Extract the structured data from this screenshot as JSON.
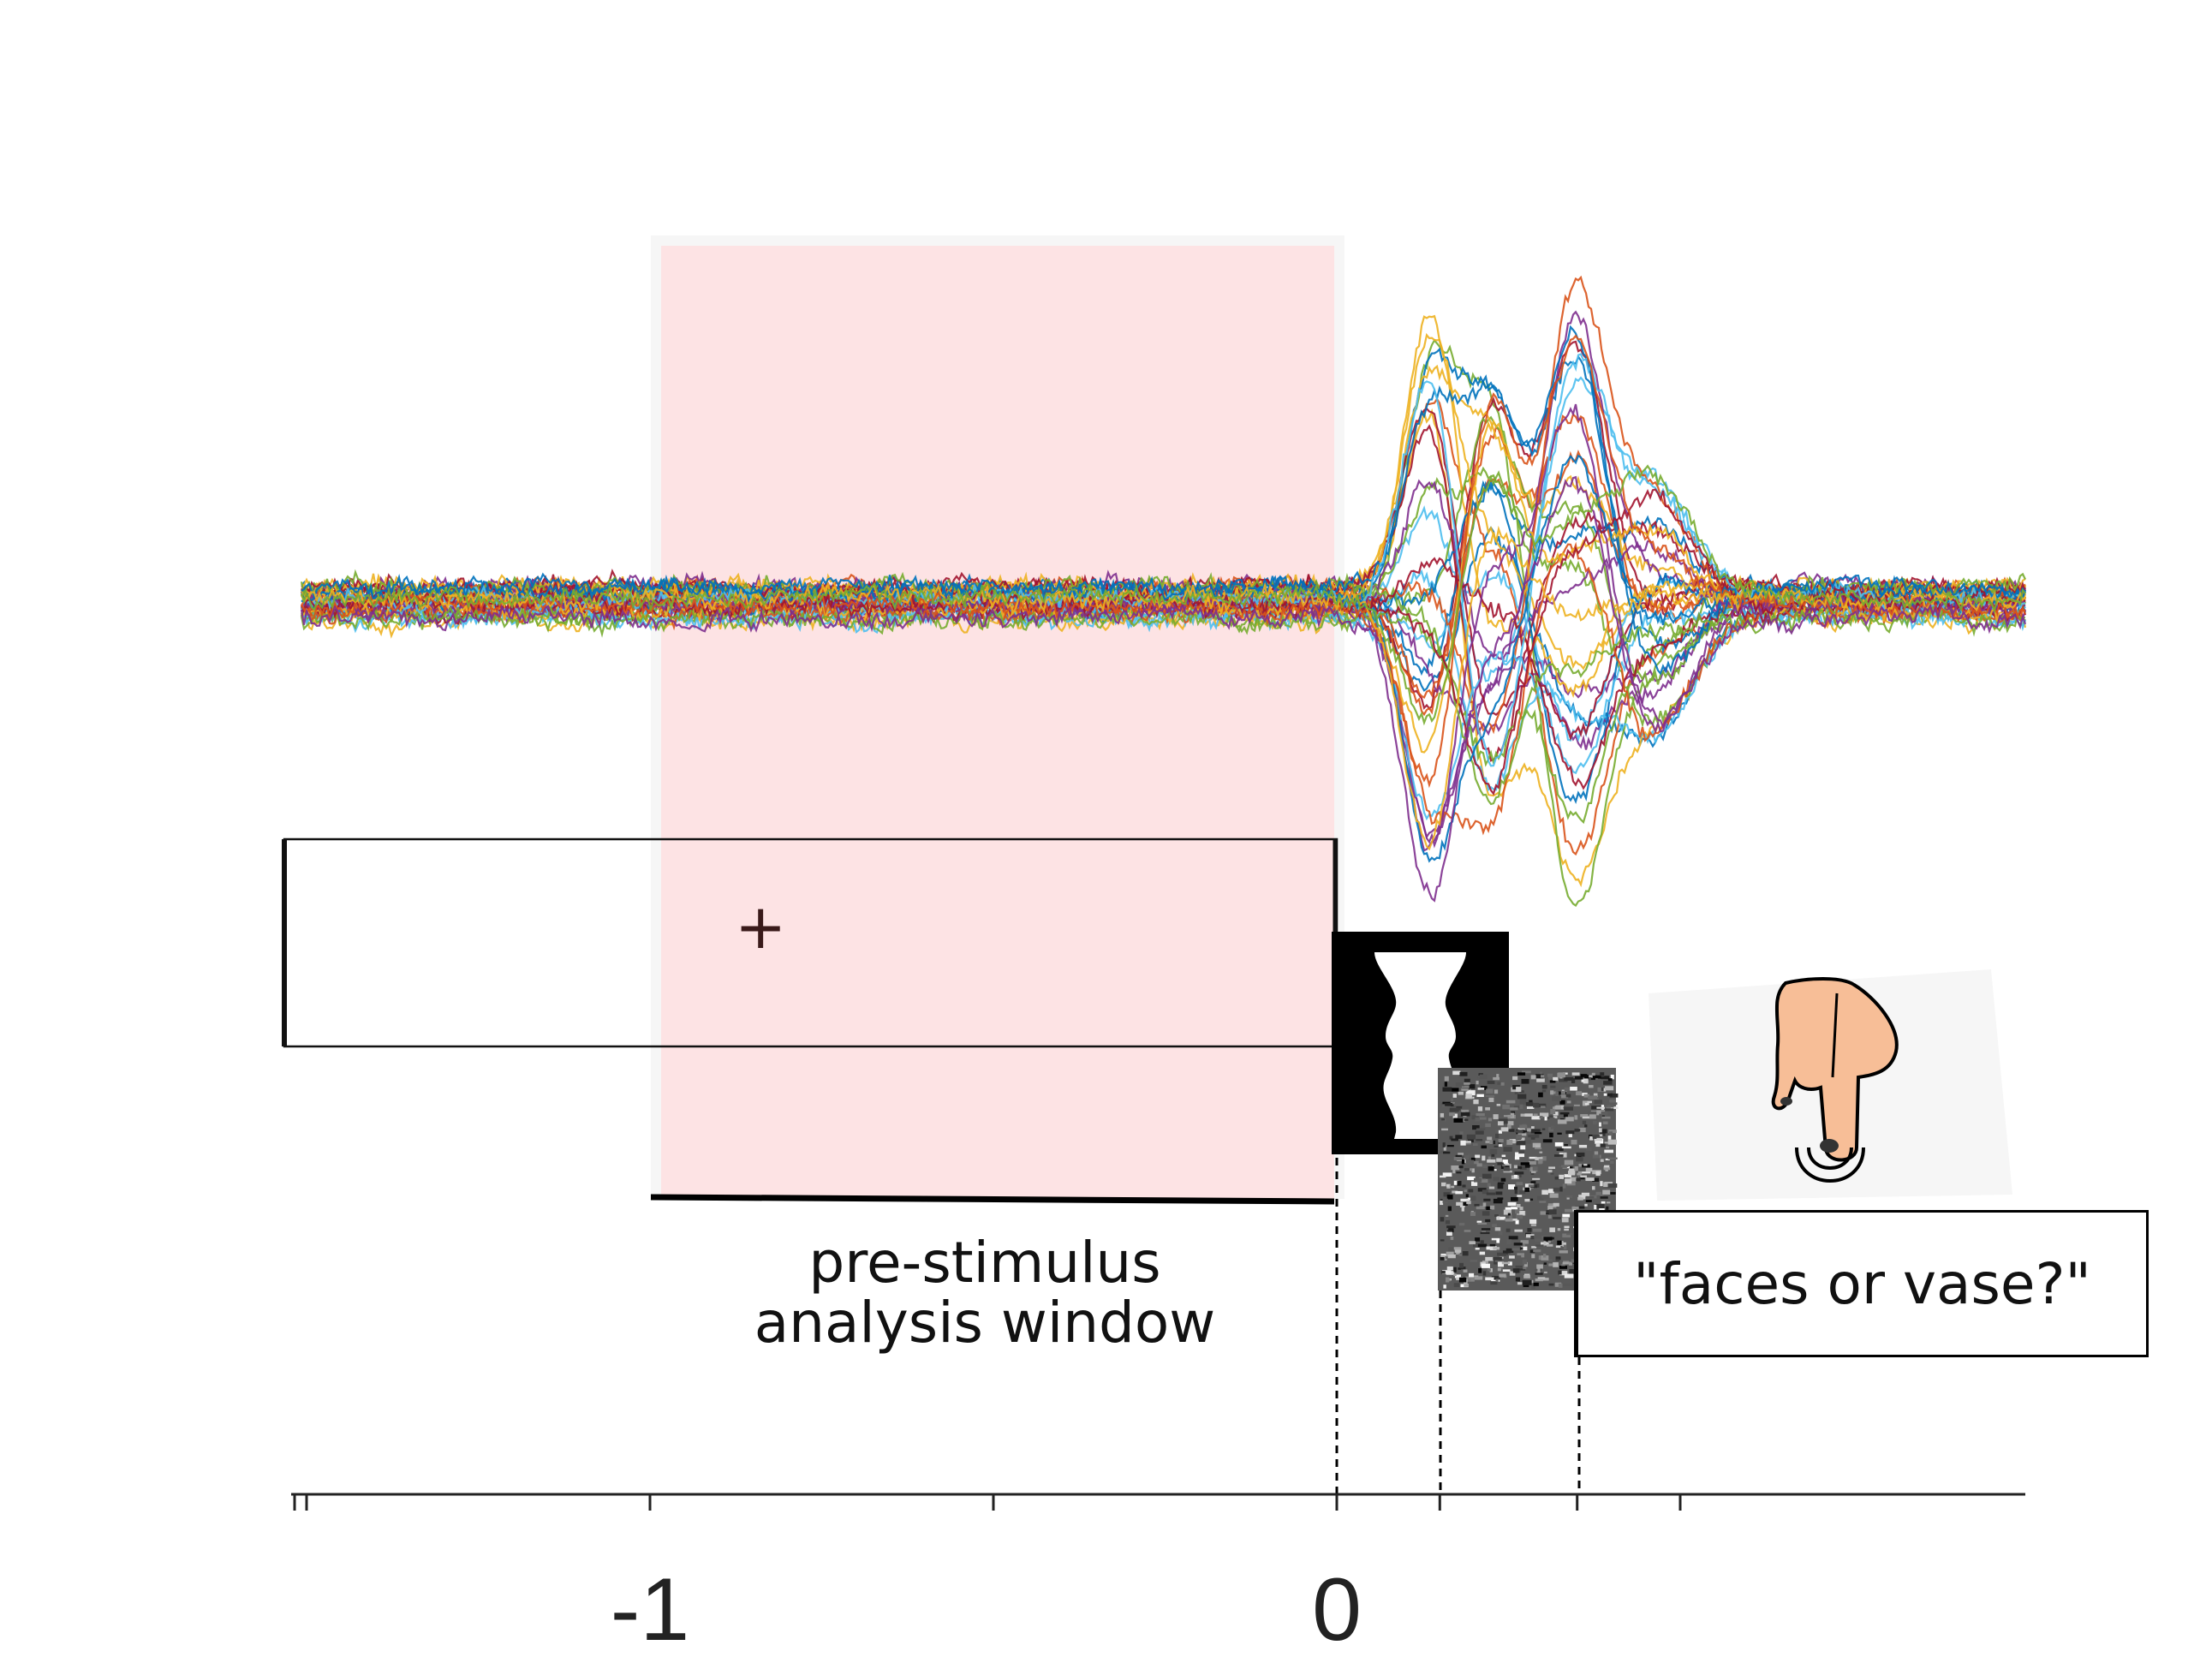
{
  "window_label": {
    "line1": "pre-stimulus",
    "line2": "analysis window"
  },
  "fixation_symbol": "+",
  "response_prompt": "\"faces or vase?\"",
  "axis": {
    "tick_labels": [
      {
        "value": -1,
        "text": "-1"
      },
      {
        "value": 0,
        "text": "0"
      }
    ],
    "range": [
      -1.52,
      1.0
    ],
    "minor_ticks": [
      -1.5,
      -1,
      -0.5,
      0,
      0.15,
      0.35,
      0.5
    ]
  },
  "events": {
    "stimulus_onset": 0,
    "mask_onset": 0.15,
    "response_onset": 0.35
  },
  "analysis_window": [
    -1,
    0
  ],
  "colors": {
    "window_fill": "#fde3e4",
    "trace_palette": [
      "#0072BD",
      "#D95319",
      "#EDB120",
      "#7E2F8E",
      "#77AC30",
      "#4DBEEE",
      "#A2142F"
    ]
  },
  "icons": {
    "stimulus": "faces-vase-icon",
    "mask": "noise-mask-icon",
    "response": "finger-press-icon"
  }
}
